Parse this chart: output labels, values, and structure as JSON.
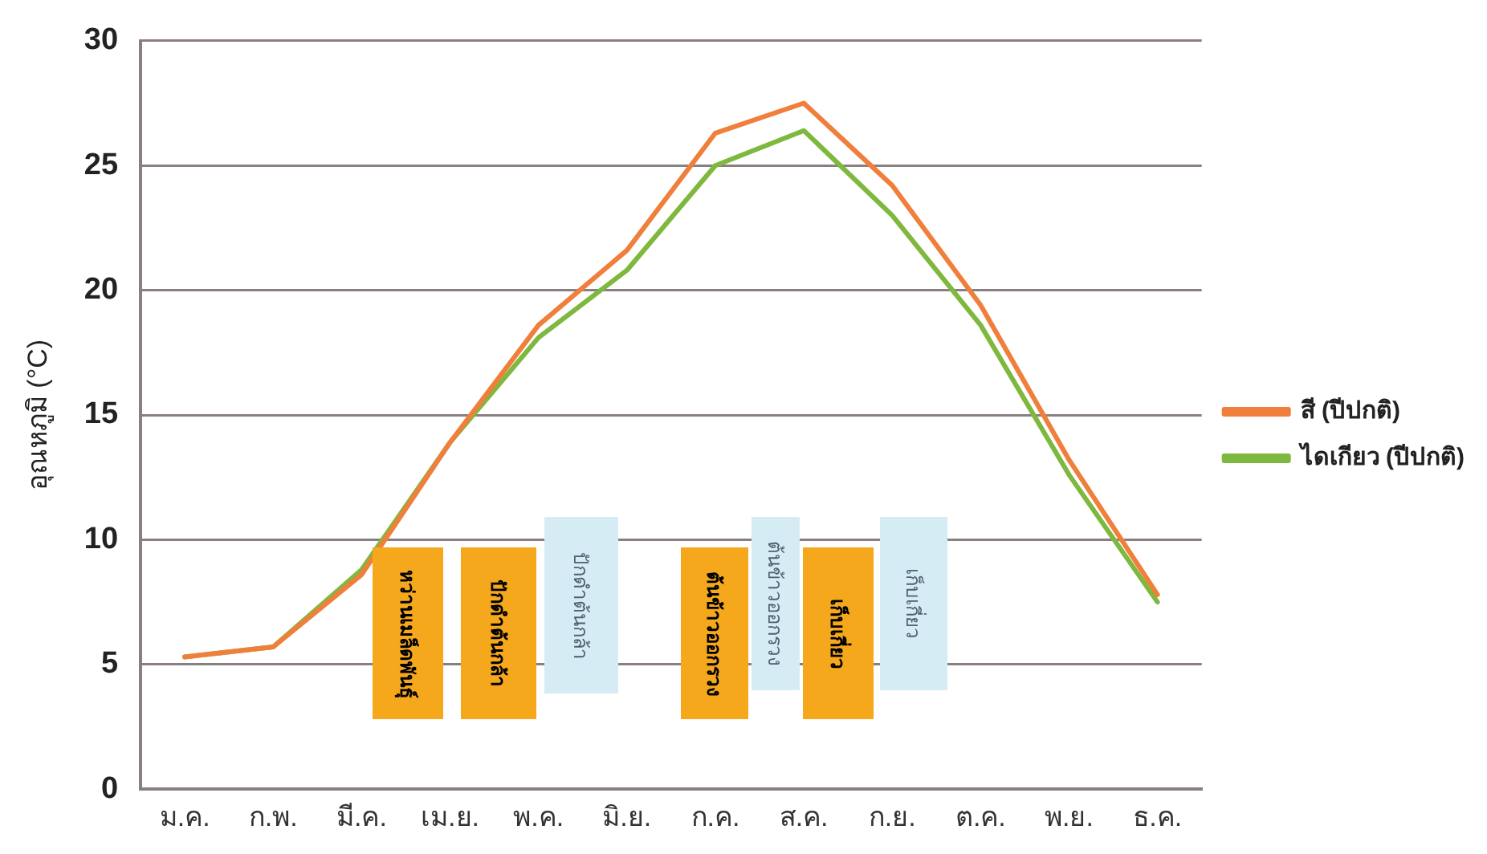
{
  "chart_data": {
    "type": "line",
    "ylabel": "อุณหภูมิ (°C)",
    "categories": [
      "ม.ค.",
      "ก.พ.",
      "มี.ค.",
      "เม.ย.",
      "พ.ค.",
      "มิ.ย.",
      "ก.ค.",
      "ส.ค.",
      "ก.ย.",
      "ต.ค.",
      "พ.ย.",
      "ธ.ค."
    ],
    "series": [
      {
        "name": "สี (ปีปกติ)",
        "color": "#f07f3c",
        "values": [
          5.3,
          5.7,
          8.6,
          13.9,
          18.6,
          21.6,
          26.3,
          27.5,
          24.2,
          19.4,
          13.2,
          7.8
        ]
      },
      {
        "name": "ไดเกียว (ปีปกติ)",
        "color": "#7fb83e",
        "values": [
          5.3,
          5.7,
          8.8,
          13.9,
          18.1,
          20.8,
          25.0,
          26.4,
          23.0,
          18.6,
          12.6,
          7.5
        ]
      }
    ],
    "ylim": [
      0,
      30
    ],
    "yticks": [
      0,
      5,
      10,
      15,
      20,
      25,
      30
    ],
    "grid": "y",
    "legend": "right",
    "marker": "none",
    "line_style": "solid",
    "annotations": [
      "หว่านเมล็ดพันธุ์",
      "ปักดำต้นกล้า",
      "ปักดำต้นกล้า",
      "ต้นข้าวออกรวง",
      "ต้นข้าวออกรวง",
      "เก็บเกี่ยว",
      "เก็บเกี่ยว"
    ]
  }
}
